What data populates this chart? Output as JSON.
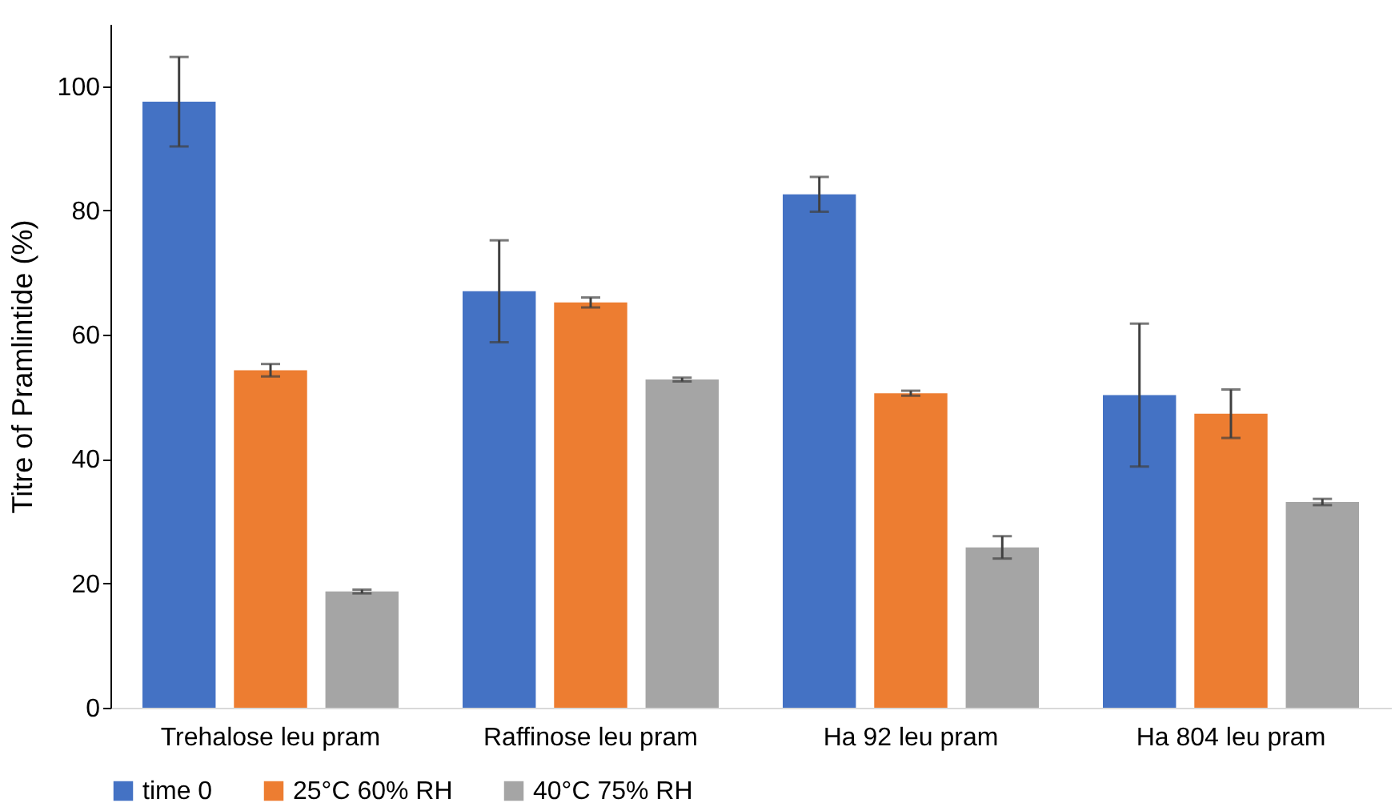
{
  "chart_data": {
    "type": "bar",
    "ylabel": "Titre of Pramlintide (%)",
    "categories": [
      "Trehalose leu pram",
      "Raffinose leu pram",
      "Ha 92 leu pram",
      "Ha 804 leu pram"
    ],
    "series": [
      {
        "name": "time 0",
        "color": "#4472c4",
        "values": [
          97.5,
          67.0,
          82.6,
          50.3
        ],
        "errors": [
          7.2,
          8.2,
          2.8,
          11.5
        ]
      },
      {
        "name": "25°C 60% RH",
        "color": "#ed7d31",
        "values": [
          54.3,
          65.2,
          50.6,
          47.3
        ],
        "errors": [
          1.0,
          0.8,
          0.4,
          3.9
        ]
      },
      {
        "name": "40°C 75% RH",
        "color": "#a5a5a5",
        "values": [
          18.7,
          52.8,
          25.8,
          33.1
        ],
        "errors": [
          0.3,
          0.3,
          1.8,
          0.5
        ]
      }
    ],
    "ylim": [
      0,
      110
    ],
    "yticks": [
      0,
      20,
      40,
      60,
      80,
      100
    ],
    "grid": false,
    "legend": "bottom"
  }
}
